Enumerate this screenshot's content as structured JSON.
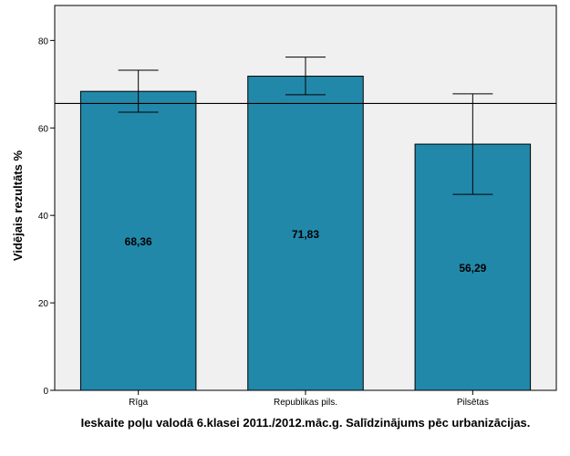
{
  "chart_data": {
    "type": "bar",
    "categories": [
      "Rīga",
      "Republikas pils.",
      "Pilsētas"
    ],
    "values": [
      68.36,
      71.83,
      56.29
    ],
    "value_labels": [
      "68,36",
      "71,83",
      "56,29"
    ],
    "error_bars": [
      {
        "low": 63.6,
        "high": 73.2
      },
      {
        "low": 67.6,
        "high": 76.2
      },
      {
        "low": 44.8,
        "high": 67.8
      }
    ],
    "reference_line": 65.6,
    "ylim": [
      0,
      88
    ],
    "yticks": [
      0,
      20,
      40,
      60,
      80
    ],
    "ylabel": "Vidējais rezultāts %",
    "xlabel": "Ieskaite poļu valodā 6.klasei 2011./2012.māc.g. Salīdzinājums pēc urbanizācijas.",
    "grid": false,
    "colors": {
      "bar": "#2288aa",
      "plot_background": "#f0f0f0",
      "line": "#000000"
    }
  }
}
